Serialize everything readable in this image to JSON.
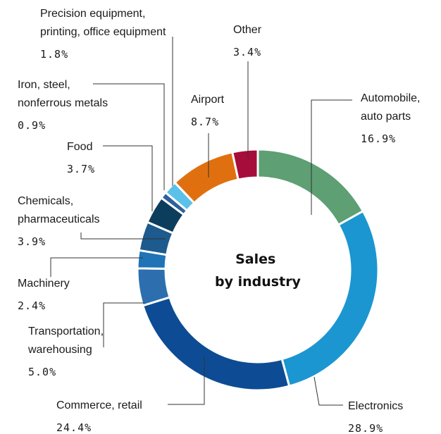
{
  "chart_data": {
    "type": "pie",
    "title": "Sales\nby industry",
    "title_lines": [
      "Sales",
      "by industry"
    ],
    "slices": [
      {
        "label": "Automobile, auto parts",
        "label_lines": [
          "Automobile,",
          "auto parts"
        ],
        "value": 16.9,
        "value_text": "16.9%",
        "color": "#5e9f74"
      },
      {
        "label": "Electronics",
        "label_lines": [
          "Electronics"
        ],
        "value": 28.9,
        "value_text": "28.9%",
        "color": "#1b96d1"
      },
      {
        "label": "Commerce, retail",
        "label_lines": [
          "Commerce, retail"
        ],
        "value": 24.4,
        "value_text": "24.4%",
        "color": "#0d4c94"
      },
      {
        "label": "Transportation, warehousing",
        "label_lines": [
          "Transportation,",
          "warehousing"
        ],
        "value": 5.0,
        "value_text": "5.0%",
        "color": "#2d6fae"
      },
      {
        "label": "Machinery",
        "label_lines": [
          "Machinery"
        ],
        "value": 2.4,
        "value_text": "2.4%",
        "color": "#1f73b7"
      },
      {
        "label": "Chemicals, pharmaceuticals",
        "label_lines": [
          "Chemicals,",
          "pharmaceuticals"
        ],
        "value": 3.9,
        "value_text": "3.9%",
        "color": "#1d5a8e"
      },
      {
        "label": "Food",
        "label_lines": [
          "Food"
        ],
        "value": 3.7,
        "value_text": "3.7%",
        "color": "#0c3d5c"
      },
      {
        "label": "Iron, steel, nonferrous metals",
        "label_lines": [
          "Iron, steel,",
          "nonferrous metals"
        ],
        "value": 0.9,
        "value_text": "0.9%",
        "color": "#2f5f9e"
      },
      {
        "label": "Precision equipment, printing, office equipment",
        "label_lines": [
          "Precision equipment,",
          "printing, office equipment"
        ],
        "value": 1.8,
        "value_text": "1.8%",
        "color": "#5cc1e8"
      },
      {
        "label": "Airport",
        "label_lines": [
          "Airport"
        ],
        "value": 8.7,
        "value_text": "8.7%",
        "color": "#e0700f"
      },
      {
        "label": "Other",
        "label_lines": [
          "Other"
        ],
        "value": 3.4,
        "value_text": "3.4%",
        "color": "#a60d3a"
      }
    ]
  }
}
